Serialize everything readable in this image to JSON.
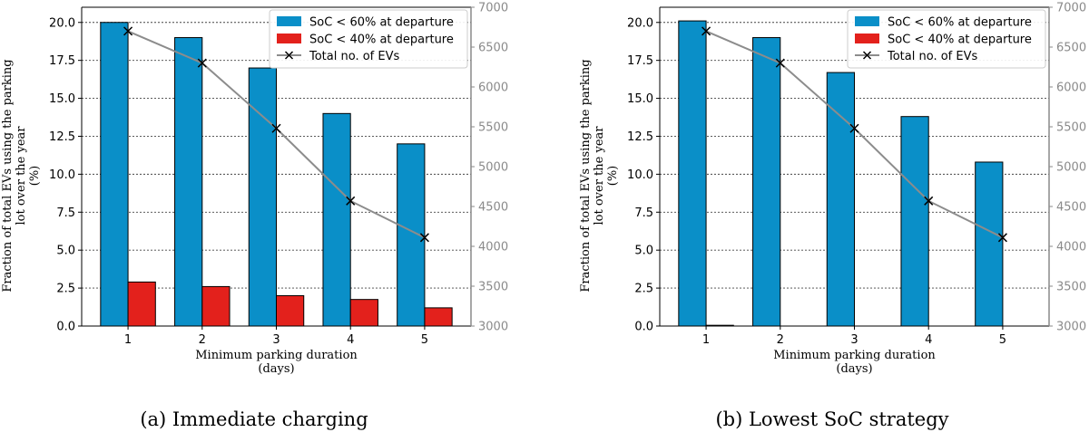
{
  "chart_data": [
    {
      "type": "bar",
      "caption": "(a) Immediate charging",
      "categories": [
        "1",
        "2",
        "3",
        "4",
        "5"
      ],
      "series": [
        {
          "name": "SoC < 60% at departure",
          "values": [
            20.0,
            19.0,
            17.0,
            14.0,
            12.0
          ],
          "color": "#0a8fc8"
        },
        {
          "name": "SoC < 40% at departure",
          "values": [
            2.9,
            2.6,
            2.0,
            1.75,
            1.2
          ],
          "color": "#e3211c"
        }
      ],
      "line_series": {
        "name": "Total no. of EVs",
        "values": [
          6700,
          6300,
          5480,
          4570,
          4110
        ],
        "color": "#8c8c8c",
        "axis": "right"
      },
      "xlabel_lines": [
        "Minimum parking duration",
        "(days)"
      ],
      "ylabel_lines": [
        "Fraction of total EVs using the parking",
        "lot over the year",
        "(%)"
      ],
      "ylim": [
        0,
        21
      ],
      "yticks": [
        "0.0",
        "2.5",
        "5.0",
        "7.5",
        "10.0",
        "12.5",
        "15.0",
        "17.5",
        "20.0"
      ],
      "y2lim": [
        3000,
        7000
      ],
      "y2ticks": [
        "3000",
        "3500",
        "4000",
        "4500",
        "5000",
        "5500",
        "6000",
        "6500",
        "7000"
      ],
      "grid": true,
      "legend": "top-right"
    },
    {
      "type": "bar",
      "caption": "(b) Lowest SoC strategy",
      "categories": [
        "1",
        "2",
        "3",
        "4",
        "5"
      ],
      "series": [
        {
          "name": "SoC < 60% at departure",
          "values": [
            20.1,
            19.0,
            16.7,
            13.8,
            10.8
          ],
          "color": "#0a8fc8"
        },
        {
          "name": "SoC < 40% at departure",
          "values": [
            0.05,
            0,
            0,
            0,
            0
          ],
          "color": "#e3211c"
        }
      ],
      "line_series": {
        "name": "Total no. of EVs",
        "values": [
          6700,
          6300,
          5480,
          4570,
          4110
        ],
        "color": "#8c8c8c",
        "axis": "right"
      },
      "xlabel_lines": [
        "Minimum parking duration",
        "(days)"
      ],
      "ylabel_lines": [
        "Fraction of total EVs using the parking",
        "lot over the year",
        "(%)"
      ],
      "ylim": [
        0,
        21
      ],
      "yticks": [
        "0.0",
        "2.5",
        "5.0",
        "7.5",
        "10.0",
        "12.5",
        "15.0",
        "17.5",
        "20.0"
      ],
      "y2lim": [
        3000,
        7000
      ],
      "y2ticks": [
        "3000",
        "3500",
        "4000",
        "4500",
        "5000",
        "5500",
        "6000",
        "6500",
        "7000"
      ],
      "grid": true,
      "legend": "top-right"
    }
  ]
}
